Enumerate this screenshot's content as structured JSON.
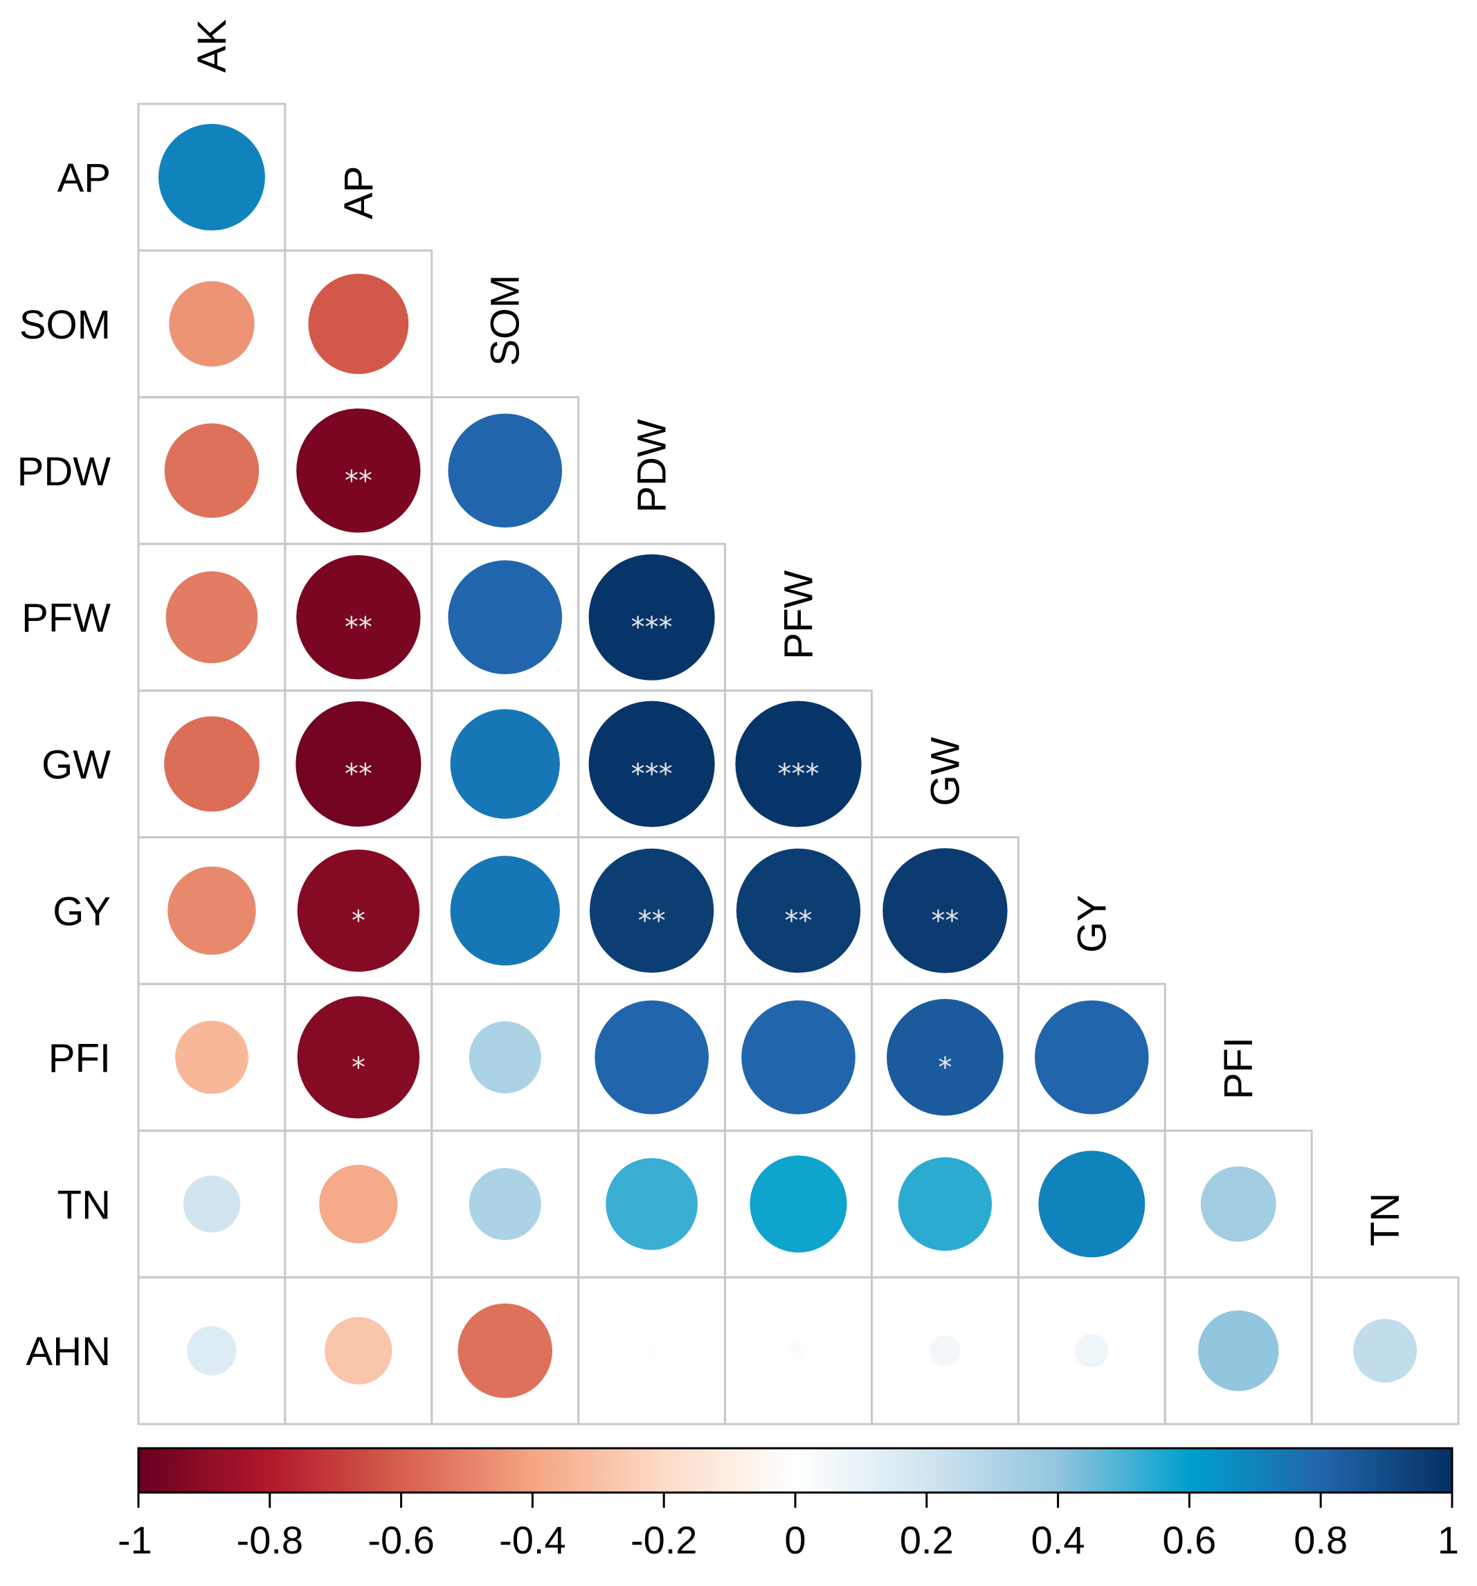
{
  "chart_data": {
    "type": "heatmap",
    "subtype": "correlation-circle-lower-triangle",
    "variables": [
      "AK",
      "AP",
      "SOM",
      "PDW",
      "PFW",
      "GW",
      "GY",
      "PFI",
      "TN",
      "AHN"
    ],
    "row_labels": [
      "AP",
      "SOM",
      "PDW",
      "PFW",
      "GW",
      "GY",
      "PFI",
      "TN",
      "AHN"
    ],
    "col_labels": [
      "AK",
      "AP",
      "SOM",
      "PDW",
      "PFW",
      "GW",
      "GY",
      "PFI",
      "TN"
    ],
    "correlations": [
      [
        0.7
      ],
      [
        -0.45,
        -0.62
      ],
      [
        -0.55,
        -0.95,
        0.8
      ],
      [
        -0.52,
        -0.95,
        0.8,
        0.98
      ],
      [
        -0.56,
        -0.97,
        0.74,
        0.98,
        0.98
      ],
      [
        -0.48,
        -0.92,
        0.74,
        0.95,
        0.95,
        0.96
      ],
      [
        -0.33,
        -0.92,
        0.32,
        0.8,
        0.8,
        0.84,
        0.8
      ],
      [
        0.2,
        -0.38,
        0.32,
        0.52,
        0.58,
        0.54,
        0.7,
        0.35
      ],
      [
        0.15,
        -0.28,
        -0.55,
        0.01,
        0.02,
        0.06,
        0.07,
        0.4,
        0.25
      ]
    ],
    "significance": [
      [
        ""
      ],
      [
        "",
        ""
      ],
      [
        "",
        "**",
        ""
      ],
      [
        "",
        "**",
        "",
        "***"
      ],
      [
        "",
        "**",
        "",
        "***",
        "***"
      ],
      [
        "",
        "*",
        "",
        "**",
        "**",
        "**"
      ],
      [
        "",
        "*",
        "",
        "",
        "",
        "*",
        ""
      ],
      [
        "",
        "",
        "",
        "",
        "",
        "",
        "",
        ""
      ],
      [
        "",
        "",
        "",
        "",
        "",
        "",
        "",
        "",
        ""
      ]
    ],
    "colorbar": {
      "range": [
        -1,
        1
      ],
      "ticks": [
        "-1",
        "-0.8",
        "-0.6",
        "-0.4",
        "-0.2",
        "0",
        "0.2",
        "0.4",
        "0.6",
        "0.8",
        "1"
      ],
      "placement": "bottom"
    },
    "palette": [
      "#67001f",
      "#b2182b",
      "#d6604d",
      "#f4a582",
      "#fddbc7",
      "#ffffff",
      "#d1e5f0",
      "#92c5de",
      "#00a0cc",
      "#2166ac",
      "#053061"
    ]
  }
}
